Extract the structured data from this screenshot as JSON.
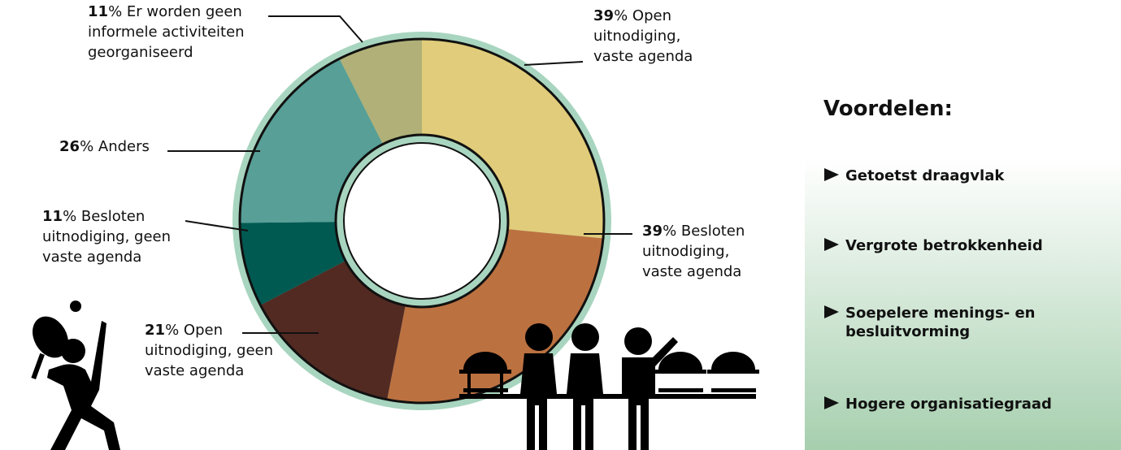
{
  "chart_data": {
    "type": "donut",
    "unit": "%",
    "categories": [
      [
        "Open",
        "uitnodiging,",
        "vaste agenda"
      ],
      [
        "Besloten",
        "uitnodiging,",
        "vaste agenda"
      ],
      [
        "Open",
        "uitnodiging, geen",
        "vaste agenda"
      ],
      [
        "Besloten",
        "uitnodiging, geen",
        "vaste agenda"
      ],
      [
        "Anders"
      ],
      [
        "Er worden geen",
        "informele activiteiten",
        "georganiseerd"
      ]
    ],
    "values": [
      39,
      39,
      21,
      11,
      26,
      11
    ],
    "colors": [
      "#e0cc7a",
      "#bc7140",
      "#522a22",
      "#005a52",
      "#579f97",
      "#b0b078"
    ]
  },
  "panel": {
    "title": "Voordelen:",
    "items": [
      [
        "Getoetst draagvlak"
      ],
      [
        "Vergrote betrokkenheid"
      ],
      [
        "Soepelere menings- en",
        "besluitvorming"
      ],
      [
        "Hogere organisatiegraad"
      ]
    ]
  }
}
